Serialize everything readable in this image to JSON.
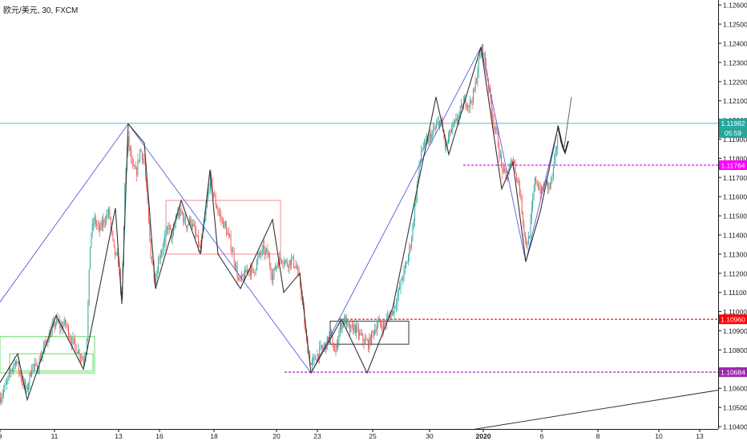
{
  "header": {
    "symbol_label": "欧元/美元, 30, FXCM"
  },
  "colors": {
    "up": "#26a69a",
    "down": "#ef5350",
    "wick": "#555555",
    "axis_text": "#131722",
    "blue_line": "#5b5bdc",
    "zigzag": "#333333",
    "teal_line": "#26a69a",
    "magenta": "#ff00ff",
    "red": "#ff0000",
    "purple": "#9c27b0",
    "box_green": "#7ee07e",
    "box_pink": "#f4a0a0",
    "box_gray": "#555555"
  },
  "chart_data": {
    "type": "candlestick",
    "title": "欧元/美元, 30, FXCM",
    "y_axis": {
      "ticks": [
        "1.12600",
        "1.12500",
        "1.12400",
        "1.12300",
        "1.12200",
        "1.12100",
        "1.12000",
        "1.11900",
        "1.11800",
        "1.11700",
        "1.11600",
        "1.11500",
        "1.11400",
        "1.11300",
        "1.11200",
        "1.11100",
        "1.11000",
        "1.10900",
        "1.10800",
        "1.10700",
        "1.10600",
        "1.10500",
        "1.10400"
      ],
      "range": [
        1.1035,
        1.1263
      ]
    },
    "x_axis": {
      "tick_labels": [
        "9",
        "11",
        "13",
        "16",
        "18",
        "20",
        "23",
        "25",
        "30",
        "2020",
        "6",
        "8",
        "10",
        "13"
      ]
    },
    "price_markers": {
      "last_price": "1.11982",
      "countdown": "05:59",
      "levels": [
        {
          "price": "1.11764",
          "color": "#ff00ff"
        },
        {
          "price": "1.10960",
          "color": "#ff0000"
        },
        {
          "price": "1.10684",
          "color": "#9c27b0"
        }
      ]
    },
    "price_path": [
      [
        0,
        1.1055
      ],
      [
        8,
        1.1062
      ],
      [
        14,
        1.107
      ],
      [
        20,
        1.1075
      ],
      [
        26,
        1.1066
      ],
      [
        33,
        1.1058
      ],
      [
        40,
        1.1072
      ],
      [
        46,
        1.107
      ],
      [
        52,
        1.1078
      ],
      [
        58,
        1.1085
      ],
      [
        64,
        1.109
      ],
      [
        70,
        1.1095
      ],
      [
        76,
        1.1092
      ],
      [
        82,
        1.1094
      ],
      [
        88,
        1.1086
      ],
      [
        94,
        1.1082
      ],
      [
        100,
        1.1078
      ],
      [
        104,
        1.1074
      ],
      [
        108,
        1.1082
      ],
      [
        113,
        1.114
      ],
      [
        118,
        1.1148
      ],
      [
        124,
        1.1142
      ],
      [
        130,
        1.1148
      ],
      [
        136,
        1.1152
      ],
      [
        142,
        1.1132
      ],
      [
        148,
        1.1125
      ],
      [
        152,
        1.1105
      ],
      [
        156,
        1.117
      ],
      [
        160,
        1.119
      ],
      [
        165,
        1.1175
      ],
      [
        170,
        1.1172
      ],
      [
        175,
        1.1185
      ],
      [
        180,
        1.1178
      ],
      [
        184,
        1.1155
      ],
      [
        188,
        1.113
      ],
      [
        194,
        1.1116
      ],
      [
        198,
        1.1128
      ],
      [
        204,
        1.1135
      ],
      [
        210,
        1.1145
      ],
      [
        215,
        1.1138
      ],
      [
        220,
        1.115
      ],
      [
        226,
        1.1152
      ],
      [
        232,
        1.1145
      ],
      [
        238,
        1.1148
      ],
      [
        244,
        1.114
      ],
      [
        250,
        1.1132
      ],
      [
        256,
        1.115
      ],
      [
        262,
        1.117
      ],
      [
        268,
        1.1158
      ],
      [
        274,
        1.115
      ],
      [
        280,
        1.1145
      ],
      [
        286,
        1.1138
      ],
      [
        292,
        1.1128
      ],
      [
        298,
        1.1115
      ],
      [
        304,
        1.1118
      ],
      [
        310,
        1.1123
      ],
      [
        316,
        1.112
      ],
      [
        322,
        1.1128
      ],
      [
        328,
        1.1132
      ],
      [
        334,
        1.113
      ],
      [
        340,
        1.1118
      ],
      [
        346,
        1.1126
      ],
      [
        352,
        1.1128
      ],
      [
        358,
        1.1125
      ],
      [
        364,
        1.1127
      ],
      [
        370,
        1.1123
      ],
      [
        376,
        1.111
      ],
      [
        382,
        1.1085
      ],
      [
        388,
        1.1072
      ],
      [
        394,
        1.1076
      ],
      [
        400,
        1.108
      ],
      [
        406,
        1.1082
      ],
      [
        412,
        1.1088
      ],
      [
        418,
        1.1078
      ],
      [
        424,
        1.1092
      ],
      [
        430,
        1.1096
      ],
      [
        436,
        1.109
      ],
      [
        442,
        1.1092
      ],
      [
        448,
        1.1088
      ],
      [
        454,
        1.1085
      ],
      [
        460,
        1.1083
      ],
      [
        466,
        1.109
      ],
      [
        472,
        1.1094
      ],
      [
        478,
        1.1092
      ],
      [
        484,
        1.1097
      ],
      [
        490,
        1.11
      ],
      [
        496,
        1.1108
      ],
      [
        502,
        1.1118
      ],
      [
        508,
        1.1126
      ],
      [
        514,
        1.114
      ],
      [
        520,
        1.1165
      ],
      [
        526,
        1.1185
      ],
      [
        532,
        1.1188
      ],
      [
        538,
        1.1192
      ],
      [
        544,
        1.1196
      ],
      [
        550,
        1.12
      ],
      [
        556,
        1.1185
      ],
      [
        562,
        1.1194
      ],
      [
        568,
        1.1198
      ],
      [
        574,
        1.1204
      ],
      [
        580,
        1.121
      ],
      [
        586,
        1.1208
      ],
      [
        592,
        1.1215
      ],
      [
        598,
        1.1232
      ],
      [
        602,
        1.1238
      ],
      [
        606,
        1.1228
      ],
      [
        612,
        1.121
      ],
      [
        616,
        1.1198
      ],
      [
        620,
        1.1192
      ],
      [
        624,
        1.118
      ],
      [
        628,
        1.1172
      ],
      [
        632,
        1.117
      ],
      [
        636,
        1.1175
      ],
      [
        640,
        1.118
      ],
      [
        644,
        1.1172
      ],
      [
        648,
        1.1165
      ],
      [
        652,
        1.115
      ],
      [
        656,
        1.1135
      ],
      [
        660,
        1.1138
      ],
      [
        664,
        1.1155
      ],
      [
        668,
        1.117
      ],
      [
        672,
        1.1165
      ],
      [
        676,
        1.1162
      ],
      [
        680,
        1.1168
      ],
      [
        684,
        1.1165
      ],
      [
        688,
        1.1168
      ],
      [
        692,
        1.1178
      ],
      [
        696,
        1.1192
      ]
    ],
    "overlays": {
      "blue_pattern": [
        [
          0,
          1.1105
        ],
        [
          160,
          1.1198
        ],
        [
          388,
          1.1068
        ],
        [
          600,
          1.1238
        ],
        [
          656,
          1.1126
        ],
        [
          696,
          1.1196
        ]
      ],
      "zigzag": [
        [
          0,
          1.1063
        ],
        [
          22,
          1.1078
        ],
        [
          34,
          1.1054
        ],
        [
          70,
          1.1098
        ],
        [
          104,
          1.107
        ],
        [
          144,
          1.1154
        ],
        [
          152,
          1.1104
        ],
        [
          160,
          1.1198
        ],
        [
          180,
          1.1188
        ],
        [
          194,
          1.1112
        ],
        [
          226,
          1.1158
        ],
        [
          250,
          1.113
        ],
        [
          262,
          1.1174
        ],
        [
          272,
          1.113
        ],
        [
          300,
          1.1112
        ],
        [
          340,
          1.1148
        ],
        [
          354,
          1.111
        ],
        [
          374,
          1.112
        ],
        [
          388,
          1.1068
        ],
        [
          426,
          1.1096
        ],
        [
          458,
          1.1068
        ],
        [
          490,
          1.1102
        ],
        [
          544,
          1.1212
        ],
        [
          560,
          1.1182
        ],
        [
          600,
          1.1238
        ],
        [
          626,
          1.1164
        ],
        [
          640,
          1.1178
        ],
        [
          656,
          1.1126
        ],
        [
          674,
          1.1152
        ],
        [
          696,
          1.1196
        ]
      ],
      "projection_dark": [
        [
          696,
          1.1197
        ],
        [
          702,
          1.1186
        ],
        [
          705,
          1.1183
        ],
        [
          709,
          1.1189
        ]
      ],
      "projection_gray": [
        [
          696,
          1.1197
        ],
        [
          700,
          1.1188
        ],
        [
          704,
          1.1186
        ],
        [
          713,
          1.1212
        ]
      ],
      "rising_trendline": [
        [
          538,
          1.1035
        ],
        [
          896,
          1.1059
        ]
      ],
      "boxes": [
        {
          "kind": "green",
          "x0": 0,
          "x1": 118,
          "p_top": 1.1087,
          "p_bot": 1.1068
        },
        {
          "kind": "green",
          "x0": 12,
          "x1": 116,
          "p_top": 1.1078,
          "p_bot": 1.1069
        },
        {
          "kind": "pink",
          "x0": 207,
          "x1": 350,
          "p_top": 1.1158,
          "p_bot": 1.113
        },
        {
          "kind": "gray",
          "x0": 412,
          "x1": 510,
          "p_top": 1.1095,
          "p_bot": 1.1083
        }
      ]
    }
  }
}
